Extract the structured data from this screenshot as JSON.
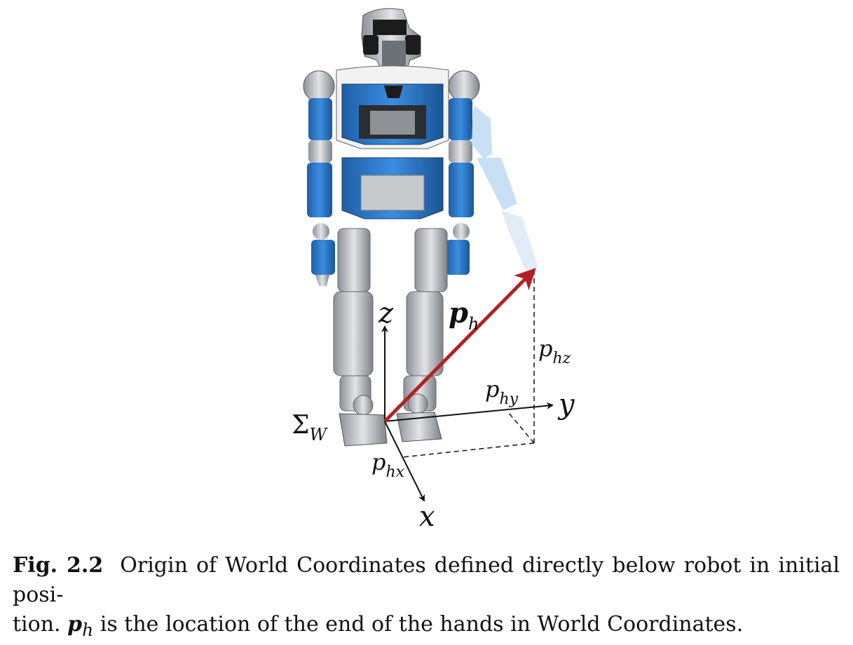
{
  "figure": {
    "labels": {
      "z": "z",
      "y": "y",
      "x": "x",
      "ph": "p",
      "ph_sub": "h",
      "phz": "p",
      "phz_sub": "hz",
      "phy": "p",
      "phy_sub": "hy",
      "phx": "p",
      "phx_sub": "hx",
      "sigma": "Σ",
      "sigma_sub": "W"
    },
    "colors": {
      "vector": "#b52025",
      "axis": "#111111",
      "robot_blue": "#2f7fd0",
      "robot_grey": "#b9bdc2",
      "robot_dark": "#2a2a2a",
      "arm_light": "#a9cde8"
    }
  },
  "caption": {
    "label": "Fig. 2.2",
    "text_1": "Origin of World Coordinates defined directly below robot in initial posi-",
    "text_2a": "tion.",
    "ph": "p",
    "ph_sub": "h",
    "text_2b": "is the location of the end of the hands in World Coordinates."
  }
}
